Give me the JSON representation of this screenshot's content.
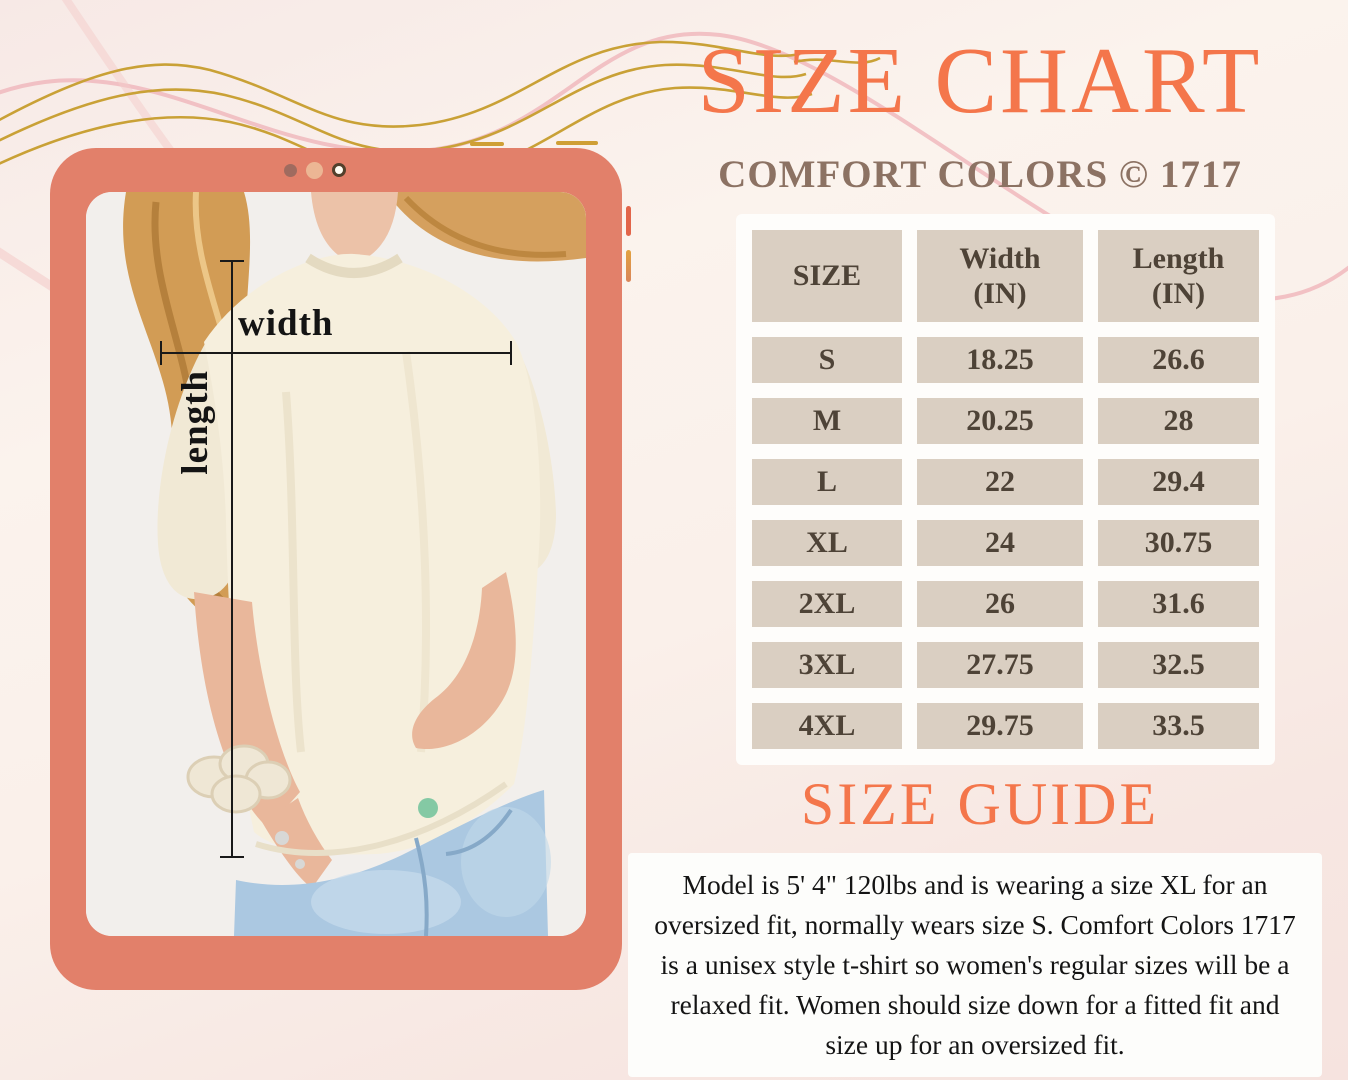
{
  "header": {
    "title": "SIZE CHART",
    "subtitle": "COMFORT COLORS © 1717"
  },
  "size_table": {
    "headers": [
      {
        "line1": "SIZE",
        "line2": ""
      },
      {
        "line1": "Width",
        "line2": "(IN)"
      },
      {
        "line1": "Length",
        "line2": "(IN)"
      }
    ],
    "rows": [
      [
        "S",
        "18.25",
        "26.6"
      ],
      [
        "M",
        "20.25",
        "28"
      ],
      [
        "L",
        "22",
        "29.4"
      ],
      [
        "XL",
        "24",
        "30.75"
      ],
      [
        "2XL",
        "26",
        "31.6"
      ],
      [
        "3XL",
        "27.75",
        "32.5"
      ],
      [
        "4XL",
        "29.75",
        "33.5"
      ]
    ]
  },
  "size_guide": {
    "heading": "SIZE GUIDE",
    "body": "Model is 5' 4\" 120lbs and is wearing a size XL for an oversized fit, normally wears size S.  Comfort Colors 1717 is a unisex style t-shirt so women's regular sizes will be a relaxed fit. Women should size down for a fitted fit and size up for an oversized fit."
  },
  "photo": {
    "width_label": "width",
    "length_label": "length",
    "description": "Model with long wavy blonde hair wearing an oversized cream Comfort Colors 1717 t-shirt and light-wash jeans, holding the hem"
  },
  "device": {
    "dots": [
      "brown-dot",
      "peach-dot",
      "camera-dot"
    ]
  },
  "colors": {
    "accent_orange": "#f4764b",
    "subtitle_brown": "#8c7263",
    "tablet_frame": "#e2806a",
    "table_cell": "#dacfc2",
    "table_text": "#4e4337",
    "card_white": "#fefdfb",
    "gold_line": "#c9a136",
    "pink_line": "#f2c1c2"
  },
  "chart_data": {
    "type": "table",
    "title": "SIZE CHART",
    "subtitle": "COMFORT COLORS © 1717",
    "columns": [
      "SIZE",
      "Width (IN)",
      "Length (IN)"
    ],
    "rows": [
      [
        "S",
        18.25,
        26.6
      ],
      [
        "M",
        20.25,
        28
      ],
      [
        "L",
        22,
        29.4
      ],
      [
        "XL",
        24,
        30.75
      ],
      [
        "2XL",
        26,
        31.6
      ],
      [
        "3XL",
        27.75,
        32.5
      ],
      [
        "4XL",
        29.75,
        33.5
      ]
    ]
  }
}
